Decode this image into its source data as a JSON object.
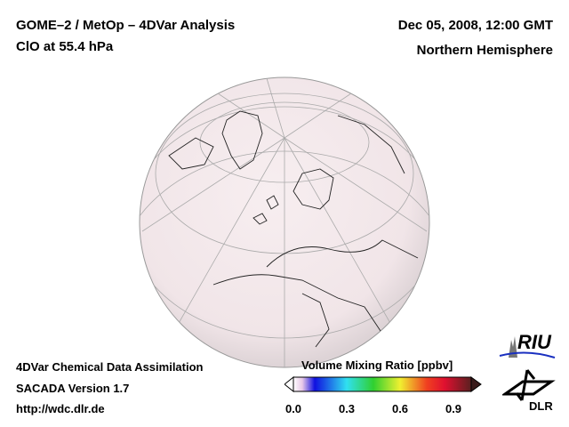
{
  "header": {
    "title_line1": "GOME–2 / MetOp – 4DVar Analysis",
    "title_line2": "ClO at 55.4 hPa",
    "date": "Dec 05, 2008, 12:00 GMT",
    "region": "Northern Hemisphere"
  },
  "footer": {
    "line1": "4DVar Chemical Data Assimilation",
    "line2": "SACADA Version 1.7",
    "line3": "http://wdc.dlr.de"
  },
  "colorbar": {
    "title": "Volume Mixing Ratio [ppbv]",
    "ticks": [
      "0.0",
      "0.3",
      "0.6",
      "0.9"
    ],
    "tick_values": [
      0.0,
      0.3,
      0.6,
      0.9
    ],
    "range": [
      0.0,
      1.0
    ]
  },
  "logos": {
    "riu": "RIU",
    "dlr": "DLR"
  },
  "colors": {
    "globe_fill": "#f4e9ec",
    "grid": "#aaaaaa"
  }
}
